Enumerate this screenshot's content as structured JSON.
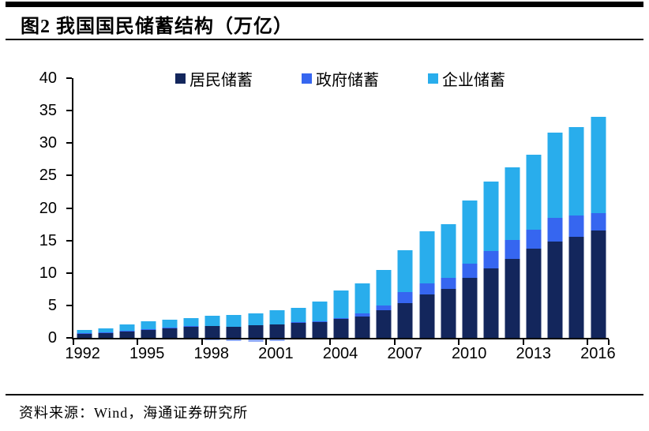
{
  "header": {
    "title": "图2  我国国民储蓄结构（万亿）"
  },
  "footer": {
    "source": "资料来源：Wind，海通证券研究所"
  },
  "chart_data": {
    "type": "bar",
    "stacked": true,
    "title": "我国国民储蓄结构（万亿）",
    "unit": "万亿",
    "grid": false,
    "legend_position": "top",
    "ylim": [
      0,
      40
    ],
    "y_ticks": [
      0,
      5,
      10,
      15,
      20,
      25,
      30,
      35,
      40
    ],
    "categories": [
      1992,
      1993,
      1994,
      1995,
      1996,
      1997,
      1998,
      1999,
      2000,
      2001,
      2002,
      2003,
      2004,
      2005,
      2006,
      2007,
      2008,
      2009,
      2010,
      2011,
      2012,
      2013,
      2014,
      2015,
      2016
    ],
    "x_tick_labels": [
      "1992",
      "1995",
      "1998",
      "2001",
      "2004",
      "2007",
      "2010",
      "2013",
      "2016"
    ],
    "series": [
      {
        "name": "居民储蓄",
        "color": "#13265C",
        "values": [
          0.7,
          0.8,
          1.0,
          1.3,
          1.5,
          1.7,
          1.8,
          1.7,
          1.9,
          2.1,
          2.4,
          2.5,
          2.9,
          3.3,
          4.2,
          5.4,
          6.7,
          7.6,
          9.2,
          10.7,
          12.1,
          13.8,
          14.8,
          15.6,
          16.5
        ]
      },
      {
        "name": "政府储蓄",
        "color": "#3666F0",
        "values": [
          0.05,
          0.05,
          0.05,
          0.1,
          0.1,
          0.1,
          -0.1,
          -0.3,
          -0.35,
          -0.25,
          0.05,
          0.1,
          0.15,
          0.5,
          0.8,
          1.6,
          1.7,
          1.7,
          2.2,
          2.7,
          3.0,
          2.9,
          3.7,
          3.2,
          2.7
        ]
      },
      {
        "name": "企业储蓄",
        "color": "#29ADEC",
        "values": [
          0.5,
          0.6,
          1.0,
          1.1,
          1.2,
          1.3,
          1.6,
          1.8,
          1.9,
          2.1,
          2.2,
          3.0,
          4.2,
          4.6,
          5.4,
          6.5,
          8.0,
          8.2,
          9.7,
          10.7,
          11.2,
          11.5,
          13.1,
          13.7,
          14.9
        ]
      }
    ]
  }
}
